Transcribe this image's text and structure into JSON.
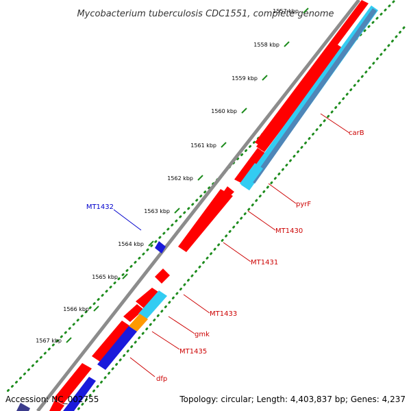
{
  "title": "Mycobacterium tuberculosis CDC1551, complete genome",
  "accession": "Accession: NC_002755",
  "summary": "Topology: circular; Length: 4,403,837 bp; Genes: 4,237",
  "colors": {
    "backbone": "#8c8c8c",
    "ruler_dots": "#1e8c1e",
    "forward_gene": "#ff0000",
    "reverse_gene": "#1a1adb",
    "highlight_orange": "#ff9900",
    "cyan_gene": "#33ccf2",
    "steel_gene": "#4f86b8",
    "label_red": "#cc0000",
    "label_blue": "#0000cc"
  },
  "ticks": [
    {
      "label": "1557 kbp"
    },
    {
      "label": "1558 kbp"
    },
    {
      "label": "1559 kbp"
    },
    {
      "label": "1560 kbp"
    },
    {
      "label": "1561 kbp"
    },
    {
      "label": "1562 kbp"
    },
    {
      "label": "1563 kbp"
    },
    {
      "label": "1564 kbp"
    },
    {
      "label": "1565 kbp"
    },
    {
      "label": "1566 kbp"
    },
    {
      "label": "1567 kbp"
    }
  ],
  "gene_labels": [
    {
      "name": "carB",
      "color": "label_red"
    },
    {
      "name": "pyrF",
      "color": "label_red"
    },
    {
      "name": "MT1432",
      "color": "label_blue"
    },
    {
      "name": "MT1430",
      "color": "label_red"
    },
    {
      "name": "MT1431",
      "color": "label_red"
    },
    {
      "name": "MT1433",
      "color": "label_red"
    },
    {
      "name": "gmk",
      "color": "label_red"
    },
    {
      "name": "MT1435",
      "color": "label_red"
    },
    {
      "name": "dfp",
      "color": "label_red"
    }
  ]
}
